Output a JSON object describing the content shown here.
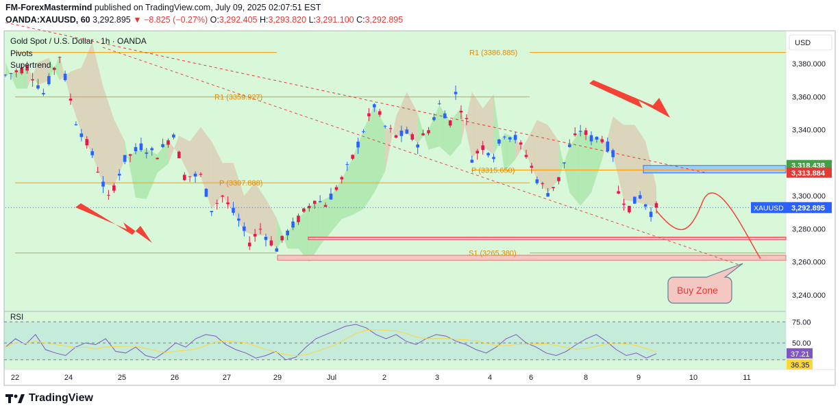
{
  "header": {
    "author": "FM-ForexMastermind",
    "published_text": "published on TradingView.com, July 09, 2025 02:07:51 EST",
    "symbol": "OANDA:XAUUSD, 60",
    "price": "3,292.895",
    "change": "▼ −8.825 (−0.27%)",
    "o_label": "O:",
    "o_value": "3,292.405",
    "h_label": "H:",
    "h_value": "3,293.820",
    "l_label": "L:",
    "l_value": "3,291.100",
    "c_label": "C:",
    "c_value": "3,292.895"
  },
  "legend": {
    "title": "Gold Spot / U.S. Dollar · 1h · OANDA",
    "indicators": [
      "Pivots",
      "Supertrend"
    ]
  },
  "footer": {
    "brand": "TradingView"
  },
  "colors": {
    "background": "#d9f7d9",
    "up": "#26a69a",
    "down": "#e53950",
    "candle_up": "#2962ff",
    "candle_down": "#e5194b",
    "pivot_line": "#ff9800",
    "supertrend_fill": "#d9c9b0",
    "trend_line": "#e53935",
    "rsi_line": "#7e57c2",
    "rsi_ma": "#fdd835",
    "annotation": "#f44336"
  },
  "chart_data": {
    "type": "candlestick",
    "currency": "USD",
    "ylim": [
      3230,
      3400
    ],
    "y_ticks": [
      3380,
      3360,
      3340,
      3320,
      3300,
      3280,
      3260,
      3240
    ],
    "y_tick_labels": [
      "3,380.000",
      "3,360.000",
      "3,340.000",
      "3,320.000",
      "3,300.000",
      "3,280.000",
      "3,260.000",
      "3,240.000"
    ],
    "x_tick_labels": [
      "22",
      "24",
      "25",
      "26",
      "27",
      "29",
      "Jul",
      "2",
      "3",
      "4",
      "6",
      "8",
      "9",
      "10",
      "11"
    ],
    "price_path": [
      [
        0,
        3373
      ],
      [
        4,
        3378
      ],
      [
        7,
        3362
      ],
      [
        10,
        3385
      ],
      [
        13,
        3345
      ],
      [
        16,
        3325
      ],
      [
        19,
        3298
      ],
      [
        22,
        3322
      ],
      [
        25,
        3330
      ],
      [
        28,
        3325
      ],
      [
        31,
        3338
      ],
      [
        33,
        3312
      ],
      [
        36,
        3312
      ],
      [
        38,
        3292
      ],
      [
        40,
        3300
      ],
      [
        43,
        3285
      ],
      [
        45,
        3272
      ],
      [
        47,
        3280
      ],
      [
        50,
        3268
      ],
      [
        52,
        3278
      ],
      [
        55,
        3290
      ],
      [
        57,
        3298
      ],
      [
        59,
        3295
      ],
      [
        62,
        3310
      ],
      [
        64,
        3323
      ],
      [
        66,
        3340
      ],
      [
        68,
        3355
      ],
      [
        70,
        3342
      ],
      [
        72,
        3336
      ],
      [
        74,
        3338
      ],
      [
        76,
        3332
      ],
      [
        78,
        3340
      ],
      [
        80,
        3355
      ],
      [
        82,
        3345
      ],
      [
        83,
        3362
      ],
      [
        85,
        3345
      ],
      [
        86,
        3323
      ],
      [
        88,
        3330
      ],
      [
        90,
        3325
      ],
      [
        92,
        3338
      ],
      [
        94,
        3335
      ],
      [
        96,
        3325
      ],
      [
        98,
        3310
      ],
      [
        100,
        3302
      ],
      [
        102,
        3310
      ],
      [
        104,
        3330
      ],
      [
        106,
        3340
      ],
      [
        108,
        3335
      ],
      [
        110,
        3335
      ],
      [
        112,
        3325
      ],
      [
        113,
        3302
      ],
      [
        115,
        3293
      ],
      [
        117,
        3300
      ],
      [
        119,
        3290
      ],
      [
        120,
        3292.895
      ]
    ],
    "last_price": 3292.895,
    "price_label": "XAUUSD",
    "price_label_value": "3,292.895",
    "marker_labels": [
      {
        "text": "3,318.438",
        "price": 3318.438,
        "color": "#43a047"
      },
      {
        "text": "3,313.884",
        "price": 3313.884,
        "color": "#e53935"
      }
    ],
    "pivots": [
      {
        "label": "R1 (3386.885)",
        "value": 3386.885
      },
      {
        "label": "R1 (3359.927)",
        "value": 3359.927
      },
      {
        "label": "P (3315.650)",
        "value": 3315.65
      },
      {
        "label": "P (3307.888)",
        "value": 3307.888
      },
      {
        "label": "S1 (3265.380)",
        "value": 3265.38
      }
    ],
    "annotations": {
      "buy_zone": "Buy Zone",
      "zones": [
        {
          "from": 3313.884,
          "to": 3318.438,
          "color": "#42a5f5"
        },
        {
          "from": 3273.5,
          "to": 3275.0,
          "color": "#e57373"
        },
        {
          "from": 3261.0,
          "to": 3264.0,
          "color": "#e57373"
        }
      ]
    },
    "rsi": {
      "label": "RSI",
      "levels": [
        75,
        50,
        30
      ],
      "level_labels": [
        "75.00",
        "50.00"
      ],
      "values": [
        45,
        55,
        48,
        60,
        42,
        38,
        35,
        45,
        50,
        48,
        55,
        40,
        38,
        45,
        35,
        32,
        40,
        50,
        45,
        55,
        60,
        58,
        48,
        42,
        38,
        32,
        35,
        40,
        30,
        33,
        45,
        55,
        60,
        65,
        70,
        72,
        68,
        60,
        55,
        60,
        52,
        48,
        55,
        60,
        58,
        52,
        48,
        42,
        38,
        45,
        55,
        60,
        50,
        45,
        38,
        35,
        40,
        48,
        55,
        60,
        52,
        42,
        35,
        38,
        32,
        37.21
      ],
      "value_label": "37.21",
      "ma_label": "36.35"
    }
  }
}
